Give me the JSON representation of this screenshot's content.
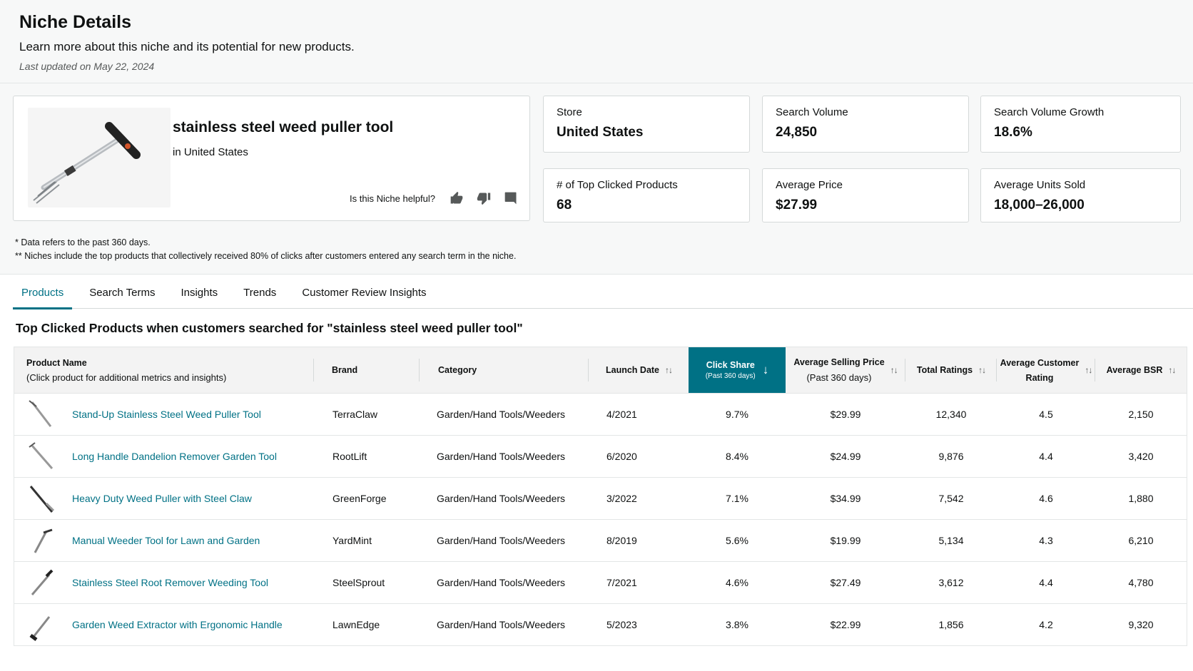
{
  "header": {
    "title": "Niche Details",
    "subtitle": "Learn more about this niche and its potential for new products.",
    "updated": "Last updated on May 22, 2024"
  },
  "niche": {
    "name": "stainless steel weed puller tool",
    "location": "in United States",
    "feedback_question": "Is this Niche helpful?"
  },
  "metrics": [
    {
      "label": "Store",
      "value": "United States"
    },
    {
      "label": "Search Volume",
      "value": "24,850"
    },
    {
      "label": "Search Volume Growth",
      "value": "18.6%"
    },
    {
      "label": "# of Top Clicked Products",
      "value": "68"
    },
    {
      "label": "Average Price",
      "value": "$27.99"
    },
    {
      "label": "Average Units Sold",
      "value": "18,000–26,000"
    }
  ],
  "footnotes": [
    "* Data refers to the past 360 days.",
    "** Niches include the top products that collectively received 80% of clicks after customers entered any search term in the niche."
  ],
  "tabs": [
    "Products",
    "Search Terms",
    "Insights",
    "Trends",
    "Customer Review Insights"
  ],
  "active_tab": "Products",
  "section_title": "Top Clicked Products when customers searched for \"stainless steel weed puller tool\"",
  "table": {
    "headers": {
      "product_name": "Product Name",
      "product_name_sub": "(Click product for additional metrics and insights)",
      "brand": "Brand",
      "category": "Category",
      "launch_date": "Launch Date",
      "click_share": "Click Share",
      "click_share_sub": "(Past 360 days)",
      "avg_price": "Average Selling Price",
      "avg_price_sub": "(Past 360 days)",
      "total_ratings": "Total Ratings",
      "avg_rating_1": "Average Customer",
      "avg_rating_2": "Rating",
      "avg_bsr": "Average BSR"
    },
    "rows": [
      {
        "name": "Stand-Up Stainless Steel Weed Puller Tool",
        "brand": "TerraClaw",
        "category": "Garden/Hand Tools/Weeders",
        "launch": "4/2021",
        "click_share": "9.7%",
        "price": "$29.99",
        "ratings": "12,340",
        "rating": "4.5",
        "bsr": "2,150"
      },
      {
        "name": "Long Handle Dandelion Remover Garden Tool",
        "brand": "RootLift",
        "category": "Garden/Hand Tools/Weeders",
        "launch": "6/2020",
        "click_share": "8.4%",
        "price": "$24.99",
        "ratings": "9,876",
        "rating": "4.4",
        "bsr": "3,420"
      },
      {
        "name": "Heavy Duty Weed Puller with Steel Claw",
        "brand": "GreenForge",
        "category": "Garden/Hand Tools/Weeders",
        "launch": "3/2022",
        "click_share": "7.1%",
        "price": "$34.99",
        "ratings": "7,542",
        "rating": "4.6",
        "bsr": "1,880"
      },
      {
        "name": "Manual Weeder Tool for Lawn and Garden",
        "brand": "YardMint",
        "category": "Garden/Hand Tools/Weeders",
        "launch": "8/2019",
        "click_share": "5.6%",
        "price": "$19.99",
        "ratings": "5,134",
        "rating": "4.3",
        "bsr": "6,210"
      },
      {
        "name": "Stainless Steel Root Remover Weeding Tool",
        "brand": "SteelSprout",
        "category": "Garden/Hand Tools/Weeders",
        "launch": "7/2021",
        "click_share": "4.6%",
        "price": "$27.49",
        "ratings": "3,612",
        "rating": "4.4",
        "bsr": "4,780"
      },
      {
        "name": "Garden Weed Extractor with Ergonomic Handle",
        "brand": "LawnEdge",
        "category": "Garden/Hand Tools/Weeders",
        "launch": "5/2023",
        "click_share": "3.8%",
        "price": "$22.99",
        "ratings": "1,856",
        "rating": "4.2",
        "bsr": "9,320"
      }
    ]
  },
  "colors": {
    "accent": "#007185",
    "text": "#0f1111",
    "muted": "#565959"
  },
  "icons": [
    "thumbs-up-icon",
    "thumbs-down-icon",
    "comment-icon",
    "sort-icon",
    "arrow-down-icon"
  ]
}
